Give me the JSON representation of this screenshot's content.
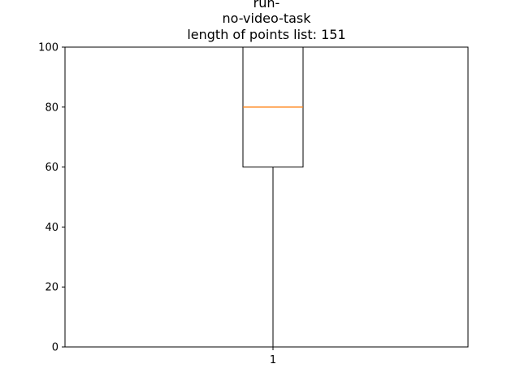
{
  "chart_data": {
    "type": "box",
    "title_lines": [
      "run-",
      "no-video-task",
      "length of points list: 151"
    ],
    "xlabel": "",
    "ylabel": "",
    "categories": [
      "1"
    ],
    "ylim": [
      0,
      100
    ],
    "yticks": [
      "0",
      "20",
      "40",
      "60",
      "80",
      "100"
    ],
    "boxes": [
      {
        "label": "1",
        "whisker_low": 0,
        "q1": 60,
        "median": 80,
        "q3": 100,
        "whisker_high": 100
      }
    ],
    "grid": false,
    "colors": {
      "box": "#000000",
      "median": "#ff7f0e"
    }
  }
}
